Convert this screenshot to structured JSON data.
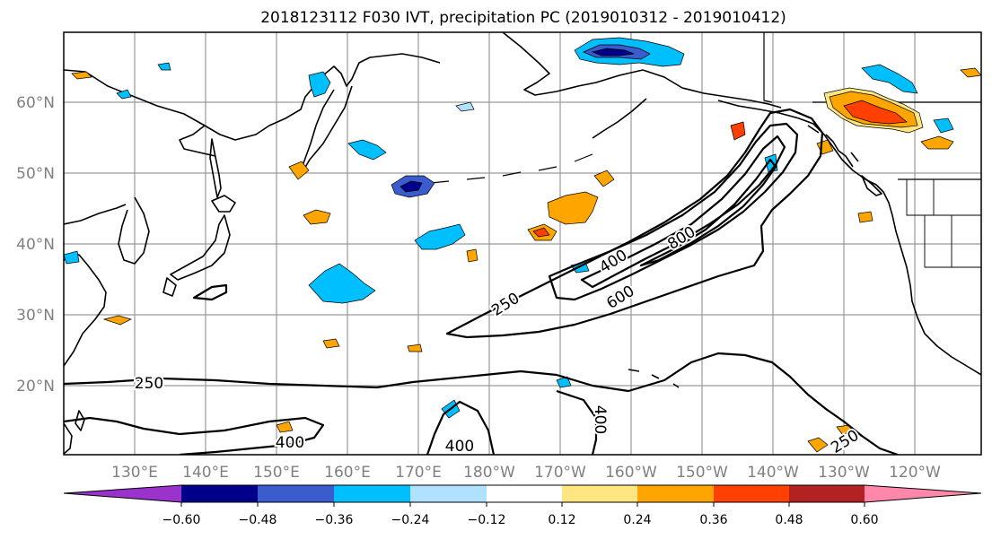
{
  "title": "2018123112 F030 IVT, precipitation PC (2019010312 - 2019010412)",
  "map": {
    "lat_labels": [
      "60°N",
      "50°N",
      "40°N",
      "30°N",
      "20°N"
    ],
    "lon_labels": [
      "130°E",
      "140°E",
      "150°E",
      "160°E",
      "170°E",
      "180°W",
      "170°W",
      "160°W",
      "150°W",
      "140°W",
      "130°W",
      "120°W"
    ],
    "gridlines": true,
    "land_color": "#ffffff",
    "coastline_color": "#000000",
    "contour_labels": [
      "250",
      "400",
      "600",
      "800",
      "250",
      "400",
      "400",
      "400",
      "250"
    ]
  },
  "colorbar": {
    "colors": [
      "#9933cc",
      "#00008b",
      "#3a5ccc",
      "#00bfff",
      "#b0e2ff",
      "#ffffff",
      "#ffe680",
      "#ffa500",
      "#ff4000",
      "#b22222",
      "#ff88aa"
    ],
    "tick_labels": [
      "−0.60",
      "−0.48",
      "−0.36",
      "−0.24",
      "−0.12",
      "0.12",
      "0.24",
      "0.36",
      "0.48",
      "0.60"
    ],
    "extend": "both"
  }
}
